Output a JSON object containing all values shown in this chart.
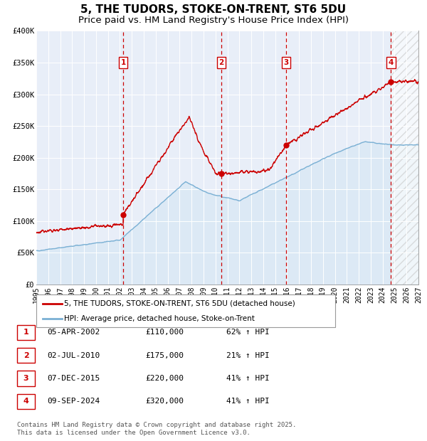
{
  "title": "5, THE TUDORS, STOKE-ON-TRENT, ST6 5DU",
  "subtitle": "Price paid vs. HM Land Registry's House Price Index (HPI)",
  "xmin": 1995.0,
  "xmax": 2027.0,
  "ymin": 0,
  "ymax": 400000,
  "yticks": [
    0,
    50000,
    100000,
    150000,
    200000,
    250000,
    300000,
    350000,
    400000
  ],
  "ytick_labels": [
    "£0",
    "£50K",
    "£100K",
    "£150K",
    "£200K",
    "£250K",
    "£300K",
    "£350K",
    "£400K"
  ],
  "xtick_years": [
    1995,
    1996,
    1997,
    1998,
    1999,
    2000,
    2001,
    2002,
    2003,
    2004,
    2005,
    2006,
    2007,
    2008,
    2009,
    2010,
    2011,
    2012,
    2013,
    2014,
    2015,
    2016,
    2017,
    2018,
    2019,
    2020,
    2021,
    2022,
    2023,
    2024,
    2025,
    2026,
    2027
  ],
  "sale_color": "#cc0000",
  "hpi_color": "#7ab0d4",
  "hpi_fill_color": "#dce9f5",
  "background_color": "#e8eef8",
  "grid_color": "#ffffff",
  "vline_color": "#cc0000",
  "title_fontsize": 11,
  "subtitle_fontsize": 9.5,
  "transactions": [
    {
      "num": 1,
      "date": "05-APR-2002",
      "price": 110000,
      "pct": "62%",
      "dir": "↑",
      "year": 2002.27
    },
    {
      "num": 2,
      "date": "02-JUL-2010",
      "price": 175000,
      "pct": "21%",
      "dir": "↑",
      "year": 2010.5
    },
    {
      "num": 3,
      "date": "07-DEC-2015",
      "price": 220000,
      "pct": "41%",
      "dir": "↑",
      "year": 2015.93
    },
    {
      "num": 4,
      "date": "09-SEP-2024",
      "price": 320000,
      "pct": "41%",
      "dir": "↑",
      "year": 2024.69
    }
  ],
  "legend_line1": "5, THE TUDORS, STOKE-ON-TRENT, ST6 5DU (detached house)",
  "legend_line2": "HPI: Average price, detached house, Stoke-on-Trent",
  "footer": "Contains HM Land Registry data © Crown copyright and database right 2025.\nThis data is licensed under the Open Government Licence v3.0."
}
